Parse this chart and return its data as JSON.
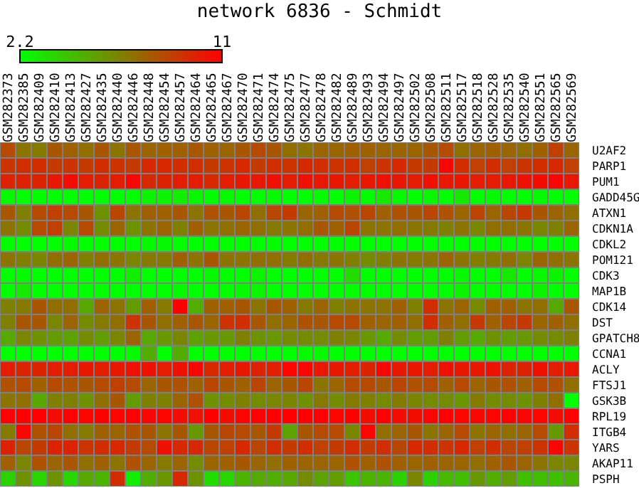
{
  "chart_data": {
    "type": "heatmap",
    "title": "network 6836 - Schmidt",
    "clim": [
      2.2,
      11
    ],
    "cticks": [
      2.2,
      11
    ],
    "categories": [
      "GSM282373",
      "GSM282385",
      "GSM282409",
      "GSM282410",
      "GSM282413",
      "GSM282427",
      "GSM282435",
      "GSM282440",
      "GSM282446",
      "GSM282448",
      "GSM282454",
      "GSM282457",
      "GSM282464",
      "GSM282465",
      "GSM282467",
      "GSM282470",
      "GSM282471",
      "GSM282474",
      "GSM282475",
      "GSM282477",
      "GSM282478",
      "GSM282482",
      "GSM282489",
      "GSM282493",
      "GSM282494",
      "GSM282497",
      "GSM282502",
      "GSM282508",
      "GSM282511",
      "GSM282517",
      "GSM282518",
      "GSM282528",
      "GSM282535",
      "GSM282540",
      "GSM282551",
      "GSM282565",
      "GSM282569"
    ],
    "y_categories": [
      "U2AF2",
      "PARP1",
      "PUM1",
      "GADD45G",
      "ATXN1",
      "CDKN1A",
      "CDKL2",
      "POM121",
      "CDK3",
      "MAP1B",
      "CDK14",
      "DST",
      "GPATCH8",
      "CCNA1",
      "ACLY",
      "FTSJ1",
      "GSK3B",
      "RPL19",
      "ITGB4",
      "YARS",
      "AKAP11",
      "PSPH"
    ],
    "cells": [
      [
        8.4,
        7,
        6.8,
        8,
        7.7,
        7.2,
        8,
        7,
        8,
        7.5,
        7.7,
        7.7,
        8,
        7.7,
        7.5,
        8,
        8.4,
        8,
        7.2,
        7,
        7.5,
        7.5,
        7.7,
        7.7,
        7.5,
        7.5,
        7.5,
        8,
        8.4,
        7.2,
        7.5,
        7.7,
        7.5,
        7.2,
        7.7,
        8.8,
        7.5
      ],
      [
        9.2,
        9.4,
        9.4,
        9,
        9.2,
        9,
        9.4,
        9.2,
        9,
        9.6,
        9.6,
        9.4,
        9.4,
        9,
        9.2,
        9.6,
        9,
        9.4,
        9.2,
        9.6,
        9.4,
        9.2,
        9.4,
        8.8,
        9.2,
        9.6,
        9,
        9,
        10.8,
        9.4,
        8.8,
        9.4,
        8.8,
        9.2,
        9.4,
        9.6,
        8.8
      ],
      [
        9.8,
        9.8,
        9.8,
        10.2,
        10.6,
        10,
        9.8,
        10,
        10.8,
        9.6,
        9.8,
        10,
        10,
        9.6,
        10,
        10.2,
        10.2,
        10.4,
        10,
        10.4,
        10.2,
        10.2,
        10,
        10.2,
        10.4,
        10.2,
        10,
        10.4,
        10.2,
        10.2,
        10,
        10,
        10.2,
        10.4,
        10.6,
        10.8,
        10.2
      ],
      [
        2.4,
        2.2,
        2.3,
        2.2,
        2.2,
        2.2,
        2.2,
        2.2,
        2.2,
        2.6,
        2.6,
        2.8,
        2.5,
        2.3,
        2.4,
        2.2,
        2.2,
        2.4,
        2.2,
        2.2,
        2.3,
        2.2,
        2.6,
        2.3,
        3,
        2.4,
        2.2,
        2.5,
        2.2,
        3,
        2.2,
        2.4,
        2.2,
        2.2,
        2.4,
        2.2,
        2.2
      ],
      [
        8,
        6.6,
        8.4,
        8.8,
        8.4,
        8,
        6,
        8.6,
        7,
        7.7,
        7.7,
        8,
        7,
        8.2,
        8,
        8.6,
        7.2,
        8.6,
        9,
        7.5,
        7.7,
        8.4,
        8.2,
        8.6,
        7.7,
        8.2,
        8,
        8.6,
        8.2,
        7.5,
        8.6,
        7.5,
        8.6,
        9,
        8,
        7.5,
        7.2
      ],
      [
        7,
        6.2,
        8.4,
        8.8,
        6.4,
        8.4,
        6.2,
        7.5,
        6,
        7,
        7.5,
        6.6,
        7.7,
        7,
        7.2,
        7.5,
        7.2,
        6.8,
        7,
        7.2,
        8,
        7.7,
        8.6,
        7,
        7,
        7.2,
        7,
        6.8,
        6.6,
        7,
        6.4,
        7.2,
        7.2,
        7,
        6.4,
        6.6,
        7.5
      ],
      [
        2.3,
        2.2,
        2.2,
        2.2,
        2.4,
        2.2,
        2.2,
        2.2,
        2.2,
        2.4,
        2.4,
        2.2,
        2.2,
        2.2,
        2.2,
        2.2,
        2.2,
        2.3,
        2.2,
        2.2,
        2.2,
        2.2,
        2.2,
        2.2,
        2.2,
        2.2,
        2.2,
        2.2,
        2.2,
        2.2,
        2.2,
        2.2,
        2.2,
        2.2,
        2.2,
        2.2,
        2.2
      ],
      [
        7,
        6.6,
        6.4,
        7.2,
        7.5,
        6.6,
        7.2,
        7,
        6.4,
        6.8,
        6.8,
        7.7,
        7,
        8,
        7,
        7,
        7.2,
        7.2,
        6.8,
        7.2,
        6.8,
        7,
        6.6,
        6.2,
        6.6,
        7,
        6.8,
        7,
        7.5,
        7,
        6.6,
        6.8,
        7.2,
        6.4,
        7.5,
        7.2,
        7
      ],
      [
        2.2,
        2.4,
        2.2,
        2.2,
        2.2,
        2.2,
        2.2,
        2.2,
        2.8,
        2.2,
        2.2,
        2.2,
        2.2,
        2.4,
        2.2,
        2.2,
        2.6,
        2.2,
        2.2,
        2.2,
        2.2,
        2.2,
        3.4,
        2.2,
        2.2,
        2.2,
        2.2,
        2.2,
        2.2,
        2.4,
        2.2,
        2.2,
        3,
        2.2,
        2.4,
        2.6,
        2.2
      ],
      [
        2.2,
        3,
        2.2,
        2.2,
        2.2,
        2.2,
        2.2,
        2.2,
        2.2,
        2.2,
        2.2,
        2.4,
        2.2,
        2.2,
        2.2,
        2.4,
        2.6,
        2.2,
        2.2,
        2.2,
        2.2,
        2.2,
        2.2,
        2.2,
        2.2,
        2.2,
        2.2,
        2.2,
        2.2,
        2.6,
        2.2,
        2.2,
        2.2,
        2.2,
        2.6,
        2.2,
        2.2
      ],
      [
        6.6,
        6.8,
        8,
        7.2,
        7.2,
        5.2,
        7.5,
        7,
        5.6,
        7.7,
        6.8,
        11,
        5,
        7.7,
        7.7,
        8,
        7,
        8,
        7.7,
        6.8,
        7.5,
        6.6,
        7,
        7,
        7,
        7.7,
        6.6,
        9.4,
        7,
        7.5,
        6.2,
        7.7,
        7.7,
        7,
        7.2,
        5.2,
        8
      ],
      [
        6.6,
        8,
        8,
        6.4,
        7.5,
        6.2,
        6.8,
        7.2,
        9.2,
        8,
        7.2,
        7.7,
        8,
        7.5,
        9.2,
        9.4,
        8,
        7.2,
        7.5,
        8.2,
        8,
        8.4,
        8.4,
        7.7,
        7.5,
        7.7,
        7.2,
        9.4,
        7.7,
        7.2,
        9,
        7.7,
        8.6,
        9,
        7.5,
        7.7,
        7.2
      ],
      [
        5.2,
        6.4,
        6,
        5.6,
        5.4,
        6.2,
        5.6,
        6.4,
        7.5,
        5.2,
        5.8,
        6.4,
        5.4,
        5.8,
        5.8,
        6.6,
        6,
        5.8,
        6.2,
        6.2,
        6.2,
        6.6,
        6.4,
        5.8,
        5.2,
        6.2,
        5.6,
        5.6,
        6.6,
        5.6,
        5.2,
        6,
        5.6,
        5.8,
        6.2,
        6.2,
        6.6
      ],
      [
        2.2,
        2.2,
        2.2,
        2.2,
        2.2,
        2.2,
        2.2,
        2.2,
        2.4,
        5,
        2.2,
        5,
        2.2,
        2.2,
        2.2,
        2.2,
        2.2,
        2.2,
        2.2,
        2.4,
        2.4,
        2.2,
        2.2,
        2.2,
        2.2,
        2.2,
        2.2,
        2.2,
        2.2,
        2.2,
        2.2,
        2.2,
        2.2,
        2.2,
        2.2,
        2.2,
        2.2
      ],
      [
        10,
        9.8,
        9.8,
        10,
        10,
        10.2,
        10,
        10.2,
        10.4,
        10.4,
        10,
        10.4,
        10.8,
        9.6,
        10,
        10.2,
        9.8,
        10,
        10.8,
        10.8,
        10.2,
        10.2,
        10,
        9.8,
        10.8,
        10.2,
        10.2,
        10,
        10.4,
        10.2,
        10.2,
        10.4,
        9.8,
        9.8,
        10.4,
        10,
        10.2
      ],
      [
        8.2,
        8.4,
        7.7,
        8.4,
        8.2,
        8,
        8.4,
        8.8,
        8.4,
        7.5,
        8,
        8.2,
        7.7,
        8.6,
        8,
        7.7,
        8.6,
        7.5,
        8,
        8.6,
        7,
        7.5,
        8.4,
        8.4,
        8,
        8.6,
        8.2,
        8.4,
        7.7,
        8.4,
        7.5,
        8,
        8.2,
        7.7,
        8.4,
        8.2,
        7.2
      ],
      [
        7,
        7.2,
        5.2,
        6.6,
        6.6,
        6,
        7.2,
        8,
        5.6,
        6.6,
        6.6,
        7.5,
        8.2,
        6,
        6.2,
        6.6,
        6.2,
        6.4,
        6.4,
        6,
        6.8,
        6.2,
        6.8,
        6.6,
        6.2,
        6.8,
        6.4,
        6.2,
        6.2,
        5.8,
        6.8,
        6.2,
        6.2,
        6,
        6.6,
        7.2,
        2.2
      ],
      [
        11,
        11,
        11,
        10.6,
        11,
        10.8,
        11,
        10.8,
        11,
        10.8,
        10.8,
        10.6,
        10.4,
        11,
        10.6,
        10.8,
        11,
        11,
        11,
        11,
        11,
        10.8,
        11,
        10.6,
        11,
        10.6,
        10.6,
        10.8,
        11,
        10.8,
        10.8,
        10.8,
        11,
        10.8,
        10.8,
        10.6,
        11
      ],
      [
        6.8,
        10.8,
        8.2,
        8.6,
        7.2,
        6.8,
        7.7,
        7.5,
        8.2,
        8,
        7,
        8,
        5.8,
        8,
        8.6,
        8.4,
        8,
        9,
        5.4,
        8,
        8.4,
        8.4,
        6.4,
        10.8,
        7.2,
        7.5,
        8,
        7,
        7.5,
        8.4,
        7,
        7.5,
        7.2,
        7.5,
        8.4,
        5.8,
        9.4
      ],
      [
        9.8,
        8.6,
        9,
        9.8,
        9.8,
        9.2,
        9.4,
        9.6,
        9,
        8.4,
        10.4,
        9.6,
        9.6,
        8.6,
        8.8,
        9.6,
        8.6,
        9.4,
        9,
        9.4,
        8.8,
        9,
        9.4,
        9,
        9.4,
        8.6,
        9.6,
        9.4,
        9.2,
        9.6,
        8.8,
        9.4,
        8.6,
        8.8,
        9.2,
        10.8,
        9.2
      ],
      [
        7.7,
        6.4,
        8.2,
        7.5,
        8,
        7.2,
        7.7,
        7,
        8.2,
        7.5,
        6.8,
        7.5,
        6.2,
        7.5,
        7.7,
        8,
        7.5,
        7.2,
        7.7,
        7.5,
        7.5,
        7.5,
        8.2,
        7.7,
        8.2,
        7.7,
        7.5,
        7.7,
        7.5,
        7.5,
        7.2,
        7.7,
        8,
        7.5,
        7,
        6.4,
        6.4
      ],
      [
        3.8,
        6,
        3.6,
        6,
        3.6,
        5.2,
        4.8,
        9.4,
        2.8,
        5,
        5.8,
        9.6,
        6,
        3.4,
        3.6,
        4.8,
        5.2,
        5,
        5.2,
        6.2,
        5.4,
        5.6,
        4.2,
        4.8,
        4.8,
        3.8,
        6.4,
        3.8,
        4.6,
        4.4,
        5.8,
        5,
        5.6,
        4.4,
        4.4,
        4.4,
        4.8
      ]
    ]
  }
}
